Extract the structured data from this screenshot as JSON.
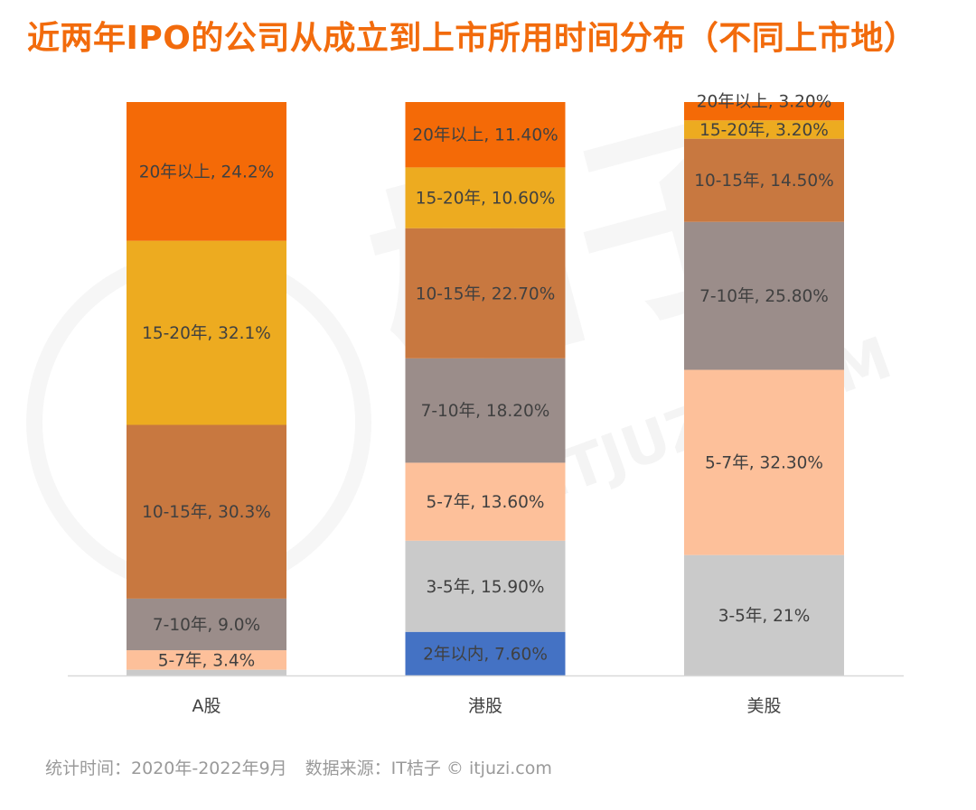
{
  "colors": {
    "title": "#f26b0c",
    "label_text": "#404040",
    "axis": "#d9d9d9",
    "footer_text": "#9a9a9a"
  },
  "watermark": {
    "logo": "桔子",
    "site": "ITJUZI.COM"
  },
  "footer": {
    "period": "统计时间：2020年-2022年9月",
    "source": "数据来源：IT桔子 © itjuzi.com"
  },
  "chart_data": {
    "type": "bar",
    "stacked": true,
    "title": "近两年IPO的公司从成立到上市所用时间分布（不同上市地）",
    "xlabel": "",
    "ylabel": "",
    "ylim": [
      0,
      100
    ],
    "grid": false,
    "legend": "none",
    "categories": [
      "A股",
      "港股",
      "美股"
    ],
    "series_colors": {
      "20年以上": "#f46a07",
      "15-20年": "#edab20",
      "10-15年": "#c87840",
      "7-10年": "#9b8d8a",
      "5-7年": "#fdc09a",
      "3-5年": "#cacaca",
      "2年以内": "#4472c4"
    },
    "bars": [
      {
        "category": "A股",
        "segments": [
          {
            "name": "20年以上",
            "value": 24.2,
            "label": "20年以上, 24.2%"
          },
          {
            "name": "15-20年",
            "value": 32.1,
            "label": "15-20年, 32.1%"
          },
          {
            "name": "10-15年",
            "value": 30.3,
            "label": "10-15年, 30.3%"
          },
          {
            "name": "7-10年",
            "value": 9.0,
            "label": "7-10年, 9.0%"
          },
          {
            "name": "5-7年",
            "value": 3.4,
            "label": "5-7年, 3.4%"
          },
          {
            "name": "3-5年",
            "value": 1.0,
            "label": ""
          }
        ]
      },
      {
        "category": "港股",
        "segments": [
          {
            "name": "20年以上",
            "value": 11.4,
            "label": "20年以上, 11.40%"
          },
          {
            "name": "15-20年",
            "value": 10.6,
            "label": "15-20年, 10.60%"
          },
          {
            "name": "10-15年",
            "value": 22.7,
            "label": "10-15年, 22.70%"
          },
          {
            "name": "7-10年",
            "value": 18.2,
            "label": "7-10年, 18.20%"
          },
          {
            "name": "5-7年",
            "value": 13.6,
            "label": "5-7年, 13.60%"
          },
          {
            "name": "3-5年",
            "value": 15.9,
            "label": "3-5年, 15.90%"
          },
          {
            "name": "2年以内",
            "value": 7.6,
            "label": "2年以内, 7.60%"
          }
        ]
      },
      {
        "category": "美股",
        "segments": [
          {
            "name": "20年以上",
            "value": 3.2,
            "label": "20年以上, 3.20%"
          },
          {
            "name": "15-20年",
            "value": 3.2,
            "label": "15-20年, 3.20%"
          },
          {
            "name": "10-15年",
            "value": 14.5,
            "label": "10-15年, 14.50%"
          },
          {
            "name": "7-10年",
            "value": 25.8,
            "label": "7-10年, 25.80%"
          },
          {
            "name": "5-7年",
            "value": 32.3,
            "label": "5-7年, 32.30%"
          },
          {
            "name": "3-5年",
            "value": 21,
            "label": "3-5年, 21%"
          }
        ]
      }
    ]
  }
}
